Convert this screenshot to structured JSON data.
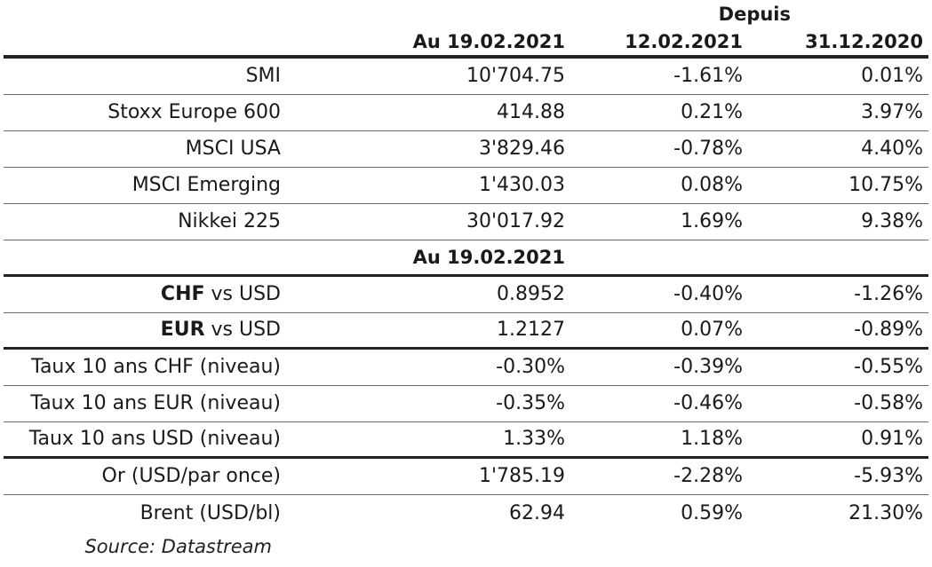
{
  "header": {
    "depuis_label": "Depuis",
    "col_date": "Au 19.02.2021",
    "col_since1": "12.02.2021",
    "col_since2": "31.12.2020"
  },
  "equities": [
    {
      "name": "SMI",
      "value": "10'704.75",
      "c1": "-1.61%",
      "c2": "0.01%"
    },
    {
      "name": "Stoxx Europe 600",
      "value": "414.88",
      "c1": "0.21%",
      "c2": "3.97%"
    },
    {
      "name": "MSCI USA",
      "value": "3'829.46",
      "c1": "-0.78%",
      "c2": "4.40%"
    },
    {
      "name": "MSCI Emerging",
      "value": "1'430.03",
      "c1": "0.08%",
      "c2": "10.75%"
    },
    {
      "name": "Nikkei 225",
      "value": "30'017.92",
      "c1": "1.69%",
      "c2": "9.38%"
    }
  ],
  "subheader": "Au 19.02.2021",
  "fx": [
    {
      "currency": "CHF",
      "rest": " vs USD",
      "value": "0.8952",
      "c1": "-0.40%",
      "c2": "-1.26%"
    },
    {
      "currency": "EUR",
      "rest": " vs USD",
      "value": "1.2127",
      "c1": "0.07%",
      "c2": "-0.89%"
    }
  ],
  "rates": [
    {
      "name": "Taux 10 ans CHF (niveau)",
      "value": "-0.30%",
      "c1": "-0.39%",
      "c2": "-0.55%"
    },
    {
      "name": "Taux 10 ans EUR (niveau)",
      "value": "-0.35%",
      "c1": "-0.46%",
      "c2": "-0.58%"
    },
    {
      "name": "Taux 10 ans USD (niveau)",
      "value": "1.33%",
      "c1": "1.18%",
      "c2": "0.91%"
    }
  ],
  "commodities": [
    {
      "name": "Or (USD/par once)",
      "value": "1'785.19",
      "c1": "-2.28%",
      "c2": "-5.93%"
    },
    {
      "name": "Brent (USD/bl)",
      "value": "62.94",
      "c1": "0.59%",
      "c2": "21.30%"
    }
  ],
  "source": "Source: Datastream"
}
